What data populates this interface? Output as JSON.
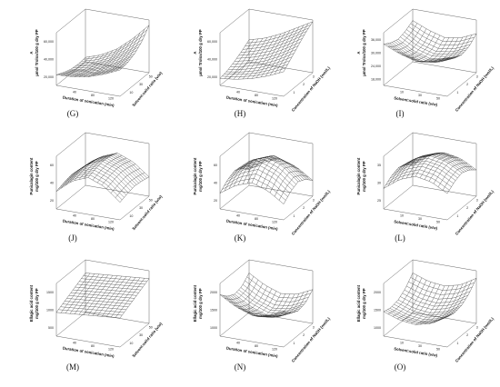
{
  "figure": {
    "panels": [
      {
        "letter": "(G)",
        "z_label_top": "A",
        "z_label_bottom": "μmol Trolox/100 g dry PP",
        "x_label": "Duration of sonication (min)",
        "y_label": "Solvent:solid ratio (v/w)",
        "x_ticks": [
          "40",
          "80",
          "120"
        ],
        "y_ticks": [
          "10",
          "30",
          "50"
        ],
        "z_ticks": [
          "20,000",
          "40,000",
          "60,000"
        ]
      },
      {
        "letter": "(H)",
        "z_label_top": "A",
        "z_label_bottom": "μmol Trolox/100 g dry PP",
        "x_label": "Duration of sonication (min)",
        "y_label": "Concentration of NaOH (mol/L)",
        "x_ticks": [
          "40",
          "80",
          "120"
        ],
        "y_ticks": [
          "1",
          "2",
          "3"
        ],
        "z_ticks": [
          "20,000",
          "40,000",
          "60,000"
        ]
      },
      {
        "letter": "(I)",
        "z_label_top": "A",
        "z_label_bottom": "μmol Trolox/100 g dry PP",
        "x_label": "Solvent:solid ratio (v/w)",
        "y_label": "Concentration of NaOH (mol/L)",
        "x_ticks": [
          "10",
          "30",
          "50"
        ],
        "y_ticks": [
          "1",
          "2",
          "3"
        ],
        "z_ticks": [
          "18,000",
          "24,000",
          "30,000",
          "36,000"
        ]
      },
      {
        "letter": "(J)",
        "z_label_top": "Punicalagin content",
        "z_label_bottom": "mg/100 g dry PP",
        "x_label": "Duration of sonication (min)",
        "y_label": "Solvent:solid ratio (v/w)",
        "x_ticks": [
          "40",
          "80",
          "120"
        ],
        "y_ticks": [
          "10",
          "30",
          "50"
        ],
        "z_ticks": [
          "20",
          "40",
          "60"
        ]
      },
      {
        "letter": "(K)",
        "z_label_top": "Punicalagin content",
        "z_label_bottom": "mg/100 g dry PP",
        "x_label": "Duration of sonication (min)",
        "y_label": "Concentration of NaOH (mol/L)",
        "x_ticks": [
          "40",
          "80",
          "120"
        ],
        "y_ticks": [
          "1",
          "2",
          "3"
        ],
        "z_ticks": [
          "20",
          "40",
          "60"
        ]
      },
      {
        "letter": "(L)",
        "z_label_top": "Punicalagin content",
        "z_label_bottom": "mg/100 g dry PP",
        "x_label": "Solvent:solid ratio (v/w)",
        "y_label": "Concentration of NaOH (mol/L)",
        "x_ticks": [
          "10",
          "30",
          "50"
        ],
        "y_ticks": [
          "1",
          "2",
          "3"
        ],
        "z_ticks": [
          "25",
          "30",
          "35"
        ]
      },
      {
        "letter": "(M)",
        "z_label_top": "Ellagic acid content",
        "z_label_bottom": "mg/100 g dry PP",
        "x_label": "Duration of sonication (min)",
        "y_label": "Solvent:solid ratio (v/w)",
        "x_ticks": [
          "40",
          "80",
          "120"
        ],
        "y_ticks": [
          "10",
          "30",
          "50"
        ],
        "z_ticks": [
          "500",
          "1000",
          "1500"
        ]
      },
      {
        "letter": "(N)",
        "z_label_top": "Ellagic acid content",
        "z_label_bottom": "mg/100 g dry PP",
        "x_label": "Duration of sonication (min)",
        "y_label": "Concentration of NaOH (mol/L)",
        "x_ticks": [
          "40",
          "80",
          "120"
        ],
        "y_ticks": [
          "1",
          "2",
          "3"
        ],
        "z_ticks": [
          "1000",
          "1500",
          "2000"
        ]
      },
      {
        "letter": "(O)",
        "z_label_top": "Ellagic acid content",
        "z_label_bottom": "mg/100 g dry PP",
        "x_label": "Solvent:solid ratio (v/w)",
        "y_label": "Concentration of NaOH (mol/L)",
        "x_ticks": [
          "10",
          "30",
          "50"
        ],
        "y_ticks": [
          "1",
          "2",
          "3"
        ],
        "z_ticks": [
          "1000",
          "1500",
          "2000"
        ]
      }
    ]
  },
  "chart_data": [
    {
      "type": "surface",
      "panel": "(G)",
      "xlabel": "Duration of sonication (min)",
      "ylabel": "Solvent:solid ratio (v/w)",
      "zlabel": "A μmol Trolox/100 g dry PP",
      "xlim": [
        0,
        140
      ],
      "ylim": [
        5,
        55
      ],
      "zlim": [
        10000,
        70000
      ],
      "x": [
        0,
        35,
        70,
        105,
        140
      ],
      "y": [
        5,
        17.5,
        30,
        42.5,
        55
      ],
      "z": [
        [
          22000,
          23000,
          26000,
          32000,
          40000
        ],
        [
          18000,
          20000,
          24000,
          31000,
          41000
        ],
        [
          15000,
          18000,
          24000,
          33000,
          45000
        ],
        [
          14000,
          18000,
          26000,
          38000,
          52000
        ],
        [
          15000,
          21000,
          31000,
          46000,
          64000
        ]
      ]
    },
    {
      "type": "surface",
      "panel": "(H)",
      "xlabel": "Duration of sonication (min)",
      "ylabel": "Concentration of NaOH (mol/L)",
      "zlabel": "A μmol Trolox/100 g dry PP",
      "xlim": [
        0,
        140
      ],
      "ylim": [
        0.5,
        3.5
      ],
      "zlim": [
        10000,
        70000
      ],
      "x": [
        0,
        35,
        70,
        105,
        140
      ],
      "y": [
        0.5,
        1.25,
        2,
        2.75,
        3.5
      ],
      "z": [
        [
          18000,
          20000,
          24000,
          30000,
          38000
        ],
        [
          20000,
          23000,
          28000,
          36000,
          46000
        ],
        [
          24000,
          28000,
          34000,
          43000,
          54000
        ],
        [
          29000,
          34000,
          41000,
          51000,
          62000
        ],
        [
          35000,
          40000,
          48000,
          58000,
          68000
        ]
      ]
    },
    {
      "type": "surface",
      "panel": "(I)",
      "xlabel": "Solvent:solid ratio (v/w)",
      "ylabel": "Concentration of NaOH (mol/L)",
      "zlabel": "A μmol Trolox/100 g dry PP",
      "xlim": [
        5,
        55
      ],
      "ylim": [
        0.5,
        3.5
      ],
      "zlim": [
        15000,
        38000
      ],
      "x": [
        5,
        17.5,
        30,
        42.5,
        55
      ],
      "y": [
        0.5,
        1.25,
        2,
        2.75,
        3.5
      ],
      "z": [
        [
          33000,
          30000,
          28000,
          29000,
          32000
        ],
        [
          31000,
          27000,
          25000,
          26000,
          29000
        ],
        [
          30000,
          26000,
          24000,
          25000,
          28000
        ],
        [
          31000,
          27000,
          25000,
          26000,
          29000
        ],
        [
          33000,
          30000,
          28000,
          29000,
          32000
        ]
      ]
    },
    {
      "type": "surface",
      "panel": "(J)",
      "xlabel": "Duration of sonication (min)",
      "ylabel": "Solvent:solid ratio (v/w)",
      "zlabel": "Punicalagin content mg/100 g dry PP",
      "xlim": [
        0,
        140
      ],
      "ylim": [
        5,
        55
      ],
      "zlim": [
        10,
        70
      ],
      "x": [
        0,
        35,
        70,
        105,
        140
      ],
      "y": [
        5,
        17.5,
        30,
        42.5,
        55
      ],
      "z": [
        [
          30,
          45,
          52,
          45,
          30
        ],
        [
          33,
          48,
          55,
          48,
          33
        ],
        [
          35,
          50,
          57,
          50,
          35
        ],
        [
          34,
          49,
          56,
          49,
          34
        ],
        [
          32,
          46,
          53,
          46,
          32
        ]
      ]
    },
    {
      "type": "surface",
      "panel": "(K)",
      "xlabel": "Duration of sonication (min)",
      "ylabel": "Concentration of NaOH (mol/L)",
      "zlabel": "Punicalagin content mg/100 g dry PP",
      "xlim": [
        0,
        140
      ],
      "ylim": [
        0.5,
        3.5
      ],
      "zlim": [
        10,
        70
      ],
      "x": [
        0,
        35,
        70,
        105,
        140
      ],
      "y": [
        0.5,
        1.25,
        2,
        2.75,
        3.5
      ],
      "z": [
        [
          28,
          40,
          46,
          40,
          28
        ],
        [
          36,
          50,
          57,
          50,
          36
        ],
        [
          40,
          55,
          62,
          55,
          40
        ],
        [
          36,
          50,
          57,
          50,
          36
        ],
        [
          28,
          40,
          46,
          40,
          28
        ]
      ]
    },
    {
      "type": "surface",
      "panel": "(L)",
      "xlabel": "Solvent:solid ratio (v/w)",
      "ylabel": "Concentration of NaOH (mol/L)",
      "zlabel": "Punicalagin content mg/100 g dry PP",
      "xlim": [
        5,
        55
      ],
      "ylim": [
        0.5,
        3.5
      ],
      "zlim": [
        20,
        38
      ],
      "x": [
        5,
        17.5,
        30,
        42.5,
        55
      ],
      "y": [
        0.5,
        1.25,
        2,
        2.75,
        3.5
      ],
      "z": [
        [
          27,
          31,
          33,
          32,
          29
        ],
        [
          29,
          33,
          35,
          34,
          31
        ],
        [
          30,
          34,
          36,
          35,
          32
        ],
        [
          29,
          33,
          35,
          34,
          31
        ],
        [
          27,
          31,
          33,
          32,
          29
        ]
      ]
    },
    {
      "type": "surface",
      "panel": "(M)",
      "xlabel": "Duration of sonication (min)",
      "ylabel": "Solvent:solid ratio (v/w)",
      "zlabel": "Ellagic acid content mg/100 g dry PP",
      "xlim": [
        0,
        140
      ],
      "ylim": [
        5,
        55
      ],
      "zlim": [
        0,
        2000
      ],
      "x": [
        0,
        35,
        70,
        105,
        140
      ],
      "y": [
        5,
        17.5,
        30,
        42.5,
        55
      ],
      "z": [
        [
          900,
          950,
          1000,
          1050,
          1100
        ],
        [
          1050,
          1100,
          1150,
          1200,
          1250
        ],
        [
          1200,
          1250,
          1300,
          1350,
          1400
        ],
        [
          1350,
          1400,
          1450,
          1500,
          1550
        ],
        [
          1500,
          1550,
          1600,
          1650,
          1700
        ]
      ]
    },
    {
      "type": "surface",
      "panel": "(N)",
      "xlabel": "Duration of sonication (min)",
      "ylabel": "Concentration of NaOH (mol/L)",
      "zlabel": "Ellagic acid content mg/100 g dry PP",
      "xlim": [
        0,
        140
      ],
      "ylim": [
        0.5,
        3.5
      ],
      "zlim": [
        800,
        2200
      ],
      "x": [
        0,
        35,
        70,
        105,
        140
      ],
      "y": [
        0.5,
        1.25,
        2,
        2.75,
        3.5
      ],
      "z": [
        [
          1900,
          1650,
          1500,
          1550,
          1750
        ],
        [
          1700,
          1450,
          1300,
          1350,
          1550
        ],
        [
          1600,
          1350,
          1200,
          1250,
          1450
        ],
        [
          1650,
          1400,
          1250,
          1300,
          1500
        ],
        [
          1850,
          1600,
          1450,
          1500,
          1700
        ]
      ]
    },
    {
      "type": "surface",
      "panel": "(O)",
      "xlabel": "Solvent:solid ratio (v/w)",
      "ylabel": "Concentration of NaOH (mol/L)",
      "zlabel": "Ellagic acid content mg/100 g dry PP",
      "xlim": [
        5,
        55
      ],
      "ylim": [
        0.5,
        3.5
      ],
      "zlim": [
        800,
        2200
      ],
      "x": [
        5,
        17.5,
        30,
        42.5,
        55
      ],
      "y": [
        0.5,
        1.25,
        2,
        2.75,
        3.5
      ],
      "z": [
        [
          1450,
          1300,
          1250,
          1350,
          1600
        ],
        [
          1400,
          1250,
          1200,
          1300,
          1550
        ],
        [
          1450,
          1300,
          1250,
          1350,
          1600
        ],
        [
          1600,
          1450,
          1400,
          1500,
          1750
        ],
        [
          1850,
          1700,
          1650,
          1750,
          2000
        ]
      ]
    }
  ]
}
